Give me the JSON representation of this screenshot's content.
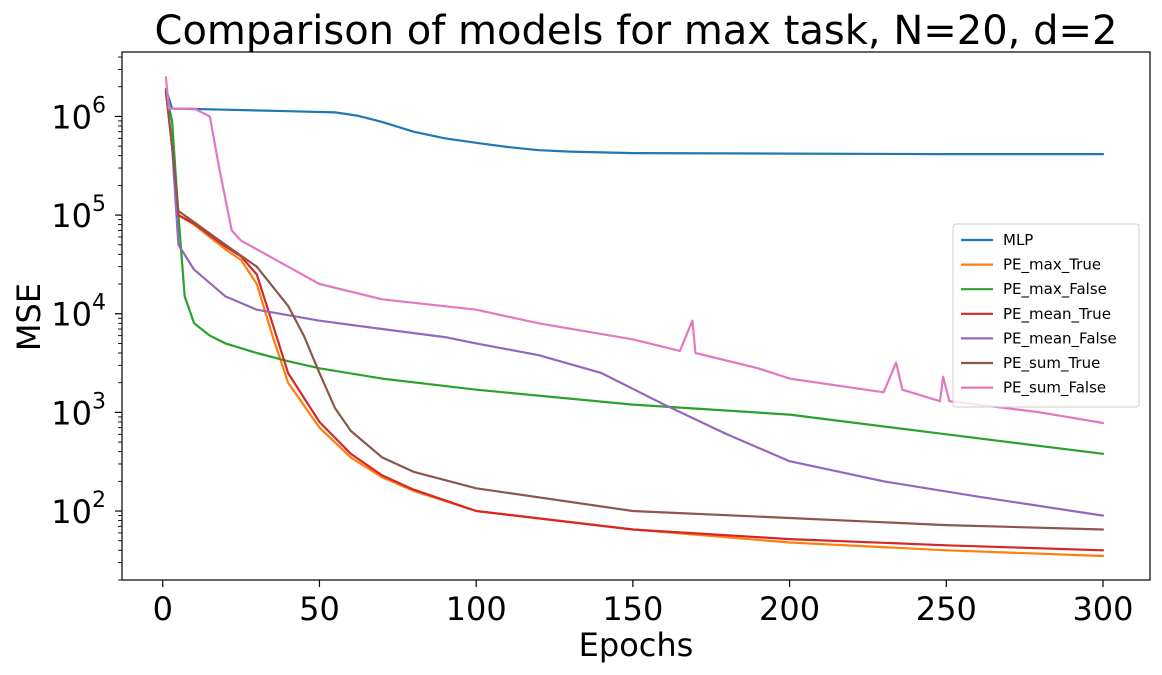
{
  "chart_data": {
    "type": "line",
    "title": "Comparison of models for max task, N=20, d=2",
    "xlabel": "Epochs",
    "ylabel": "MSE",
    "xlim": [
      -13,
      315
    ],
    "ylim": [
      20,
      4500000
    ],
    "yscale": "log",
    "grid": false,
    "legend_position": "center-right",
    "x_ticks": [
      {
        "value": 0,
        "label": "0"
      },
      {
        "value": 50,
        "label": "50"
      },
      {
        "value": 100,
        "label": "100"
      },
      {
        "value": 150,
        "label": "150"
      },
      {
        "value": 200,
        "label": "200"
      },
      {
        "value": 250,
        "label": "250"
      },
      {
        "value": 300,
        "label": "300"
      }
    ],
    "y_ticks": [
      {
        "value": 100,
        "base": "10",
        "exp": "2"
      },
      {
        "value": 1000,
        "base": "10",
        "exp": "3"
      },
      {
        "value": 10000,
        "base": "10",
        "exp": "4"
      },
      {
        "value": 100000,
        "base": "10",
        "exp": "5"
      },
      {
        "value": 1000000,
        "base": "10",
        "exp": "6"
      }
    ],
    "series": [
      {
        "name": "MLP",
        "color": "#1f77b4",
        "x": [
          1,
          3,
          10,
          20,
          40,
          55,
          62,
          70,
          80,
          90,
          100,
          110,
          120,
          130,
          150,
          200,
          250,
          300
        ],
        "y": [
          1900000,
          1200000,
          1190000,
          1170000,
          1130000,
          1100000,
          1020000,
          880000,
          700000,
          600000,
          540000,
          490000,
          455000,
          440000,
          425000,
          420000,
          415000,
          415000
        ]
      },
      {
        "name": "PE_max_True",
        "color": "#ff7f0e",
        "x": [
          1,
          3,
          5,
          10,
          20,
          25,
          30,
          35,
          40,
          50,
          60,
          70,
          80,
          100,
          150,
          200,
          250,
          300
        ],
        "y": [
          1800000,
          500000,
          100000,
          80000,
          45000,
          35000,
          20000,
          6000,
          2000,
          700,
          350,
          220,
          160,
          100,
          65,
          48,
          40,
          35
        ]
      },
      {
        "name": "PE_max_False",
        "color": "#2ca02c",
        "x": [
          1,
          3,
          5,
          7,
          10,
          15,
          20,
          30,
          40,
          50,
          70,
          100,
          150,
          200,
          250,
          300
        ],
        "y": [
          1700000,
          900000,
          100000,
          15000,
          8000,
          6000,
          5000,
          4000,
          3300,
          2800,
          2200,
          1700,
          1200,
          950,
          600,
          380
        ]
      },
      {
        "name": "PE_mean_True",
        "color": "#d62728",
        "x": [
          1,
          3,
          5,
          10,
          20,
          25,
          30,
          35,
          40,
          50,
          60,
          70,
          80,
          100,
          150,
          200,
          250,
          300
        ],
        "y": [
          1800000,
          500000,
          100000,
          82000,
          48000,
          38000,
          25000,
          8000,
          2500,
          800,
          380,
          230,
          165,
          100,
          65,
          52,
          45,
          40
        ]
      },
      {
        "name": "PE_mean_False",
        "color": "#9467bd",
        "x": [
          1,
          3,
          5,
          10,
          20,
          30,
          50,
          70,
          90,
          100,
          120,
          140,
          160,
          180,
          200,
          230,
          260,
          300
        ],
        "y": [
          1800000,
          500000,
          50000,
          28000,
          15000,
          11000,
          8500,
          7000,
          5800,
          5000,
          3800,
          2500,
          1200,
          600,
          320,
          200,
          140,
          90
        ]
      },
      {
        "name": "PE_sum_True",
        "color": "#8c564b",
        "x": [
          1,
          3,
          5,
          10,
          20,
          30,
          40,
          45,
          50,
          55,
          60,
          70,
          80,
          100,
          150,
          200,
          250,
          300
        ],
        "y": [
          1800000,
          500000,
          110000,
          85000,
          50000,
          30000,
          12000,
          6000,
          2500,
          1100,
          650,
          350,
          250,
          170,
          100,
          85,
          72,
          65
        ]
      },
      {
        "name": "PE_sum_False",
        "color": "#e377c2",
        "x": [
          1,
          2,
          5,
          10,
          15,
          18,
          22,
          25,
          30,
          40,
          50,
          70,
          100,
          120,
          150,
          165,
          169,
          170,
          190,
          200,
          230,
          234,
          236,
          248,
          249,
          251,
          260,
          280,
          300
        ],
        "y": [
          2500000,
          1200000,
          1200000,
          1200000,
          1000000,
          300000,
          70000,
          55000,
          45000,
          30000,
          20000,
          14000,
          11000,
          8000,
          5500,
          4200,
          8500,
          4000,
          2800,
          2200,
          1600,
          3200,
          1700,
          1300,
          2300,
          1300,
          1200,
          1000,
          780
        ]
      }
    ]
  }
}
